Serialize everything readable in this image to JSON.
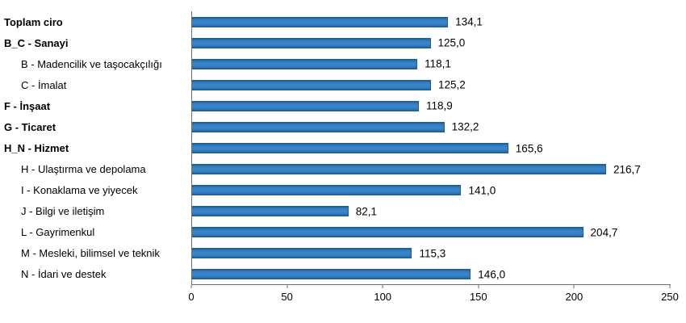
{
  "chart_data": {
    "type": "bar",
    "orientation": "horizontal",
    "title": "",
    "xlabel": "",
    "ylabel": "",
    "xlim": [
      0,
      250
    ],
    "x_ticks": [
      "0",
      "50",
      "100",
      "150",
      "200",
      "250"
    ],
    "grid": false,
    "legend": "none",
    "bar_color": "#2e7bbf",
    "bar_color_light": "#3a86c8",
    "bar_border_color": "#1e5e97",
    "axis_color": "#6e6e6e",
    "categories": [
      {
        "label": "Toplam ciro",
        "value": 134.1,
        "display": "134,1",
        "bold": true,
        "indent": false
      },
      {
        "label": "B_C - Sanayi",
        "value": 125.0,
        "display": "125,0",
        "bold": true,
        "indent": false
      },
      {
        "label": "B - Madencilik ve taşocakçılığı",
        "value": 118.1,
        "display": "118,1",
        "bold": false,
        "indent": true
      },
      {
        "label": "C - İmalat",
        "value": 125.2,
        "display": "125,2",
        "bold": false,
        "indent": true
      },
      {
        "label": "F - İnşaat",
        "value": 118.9,
        "display": "118,9",
        "bold": true,
        "indent": false
      },
      {
        "label": "G - Ticaret",
        "value": 132.2,
        "display": "132,2",
        "bold": true,
        "indent": false
      },
      {
        "label": "H_N - Hizmet",
        "value": 165.6,
        "display": "165,6",
        "bold": true,
        "indent": false
      },
      {
        "label": "H - Ulaştırma ve depolama",
        "value": 216.7,
        "display": "216,7",
        "bold": false,
        "indent": true
      },
      {
        "label": "I - Konaklama ve yiyecek",
        "value": 141.0,
        "display": "141,0",
        "bold": false,
        "indent": true
      },
      {
        "label": "J - Bilgi ve iletişim",
        "value": 82.1,
        "display": "82,1",
        "bold": false,
        "indent": true
      },
      {
        "label": "L - Gayrimenkul",
        "value": 204.7,
        "display": "204,7",
        "bold": false,
        "indent": true
      },
      {
        "label": "M - Mesleki, bilimsel ve teknik",
        "value": 115.3,
        "display": "115,3",
        "bold": false,
        "indent": true
      },
      {
        "label": "N - İdari ve destek",
        "value": 146.0,
        "display": "146,0",
        "bold": false,
        "indent": true
      }
    ]
  }
}
